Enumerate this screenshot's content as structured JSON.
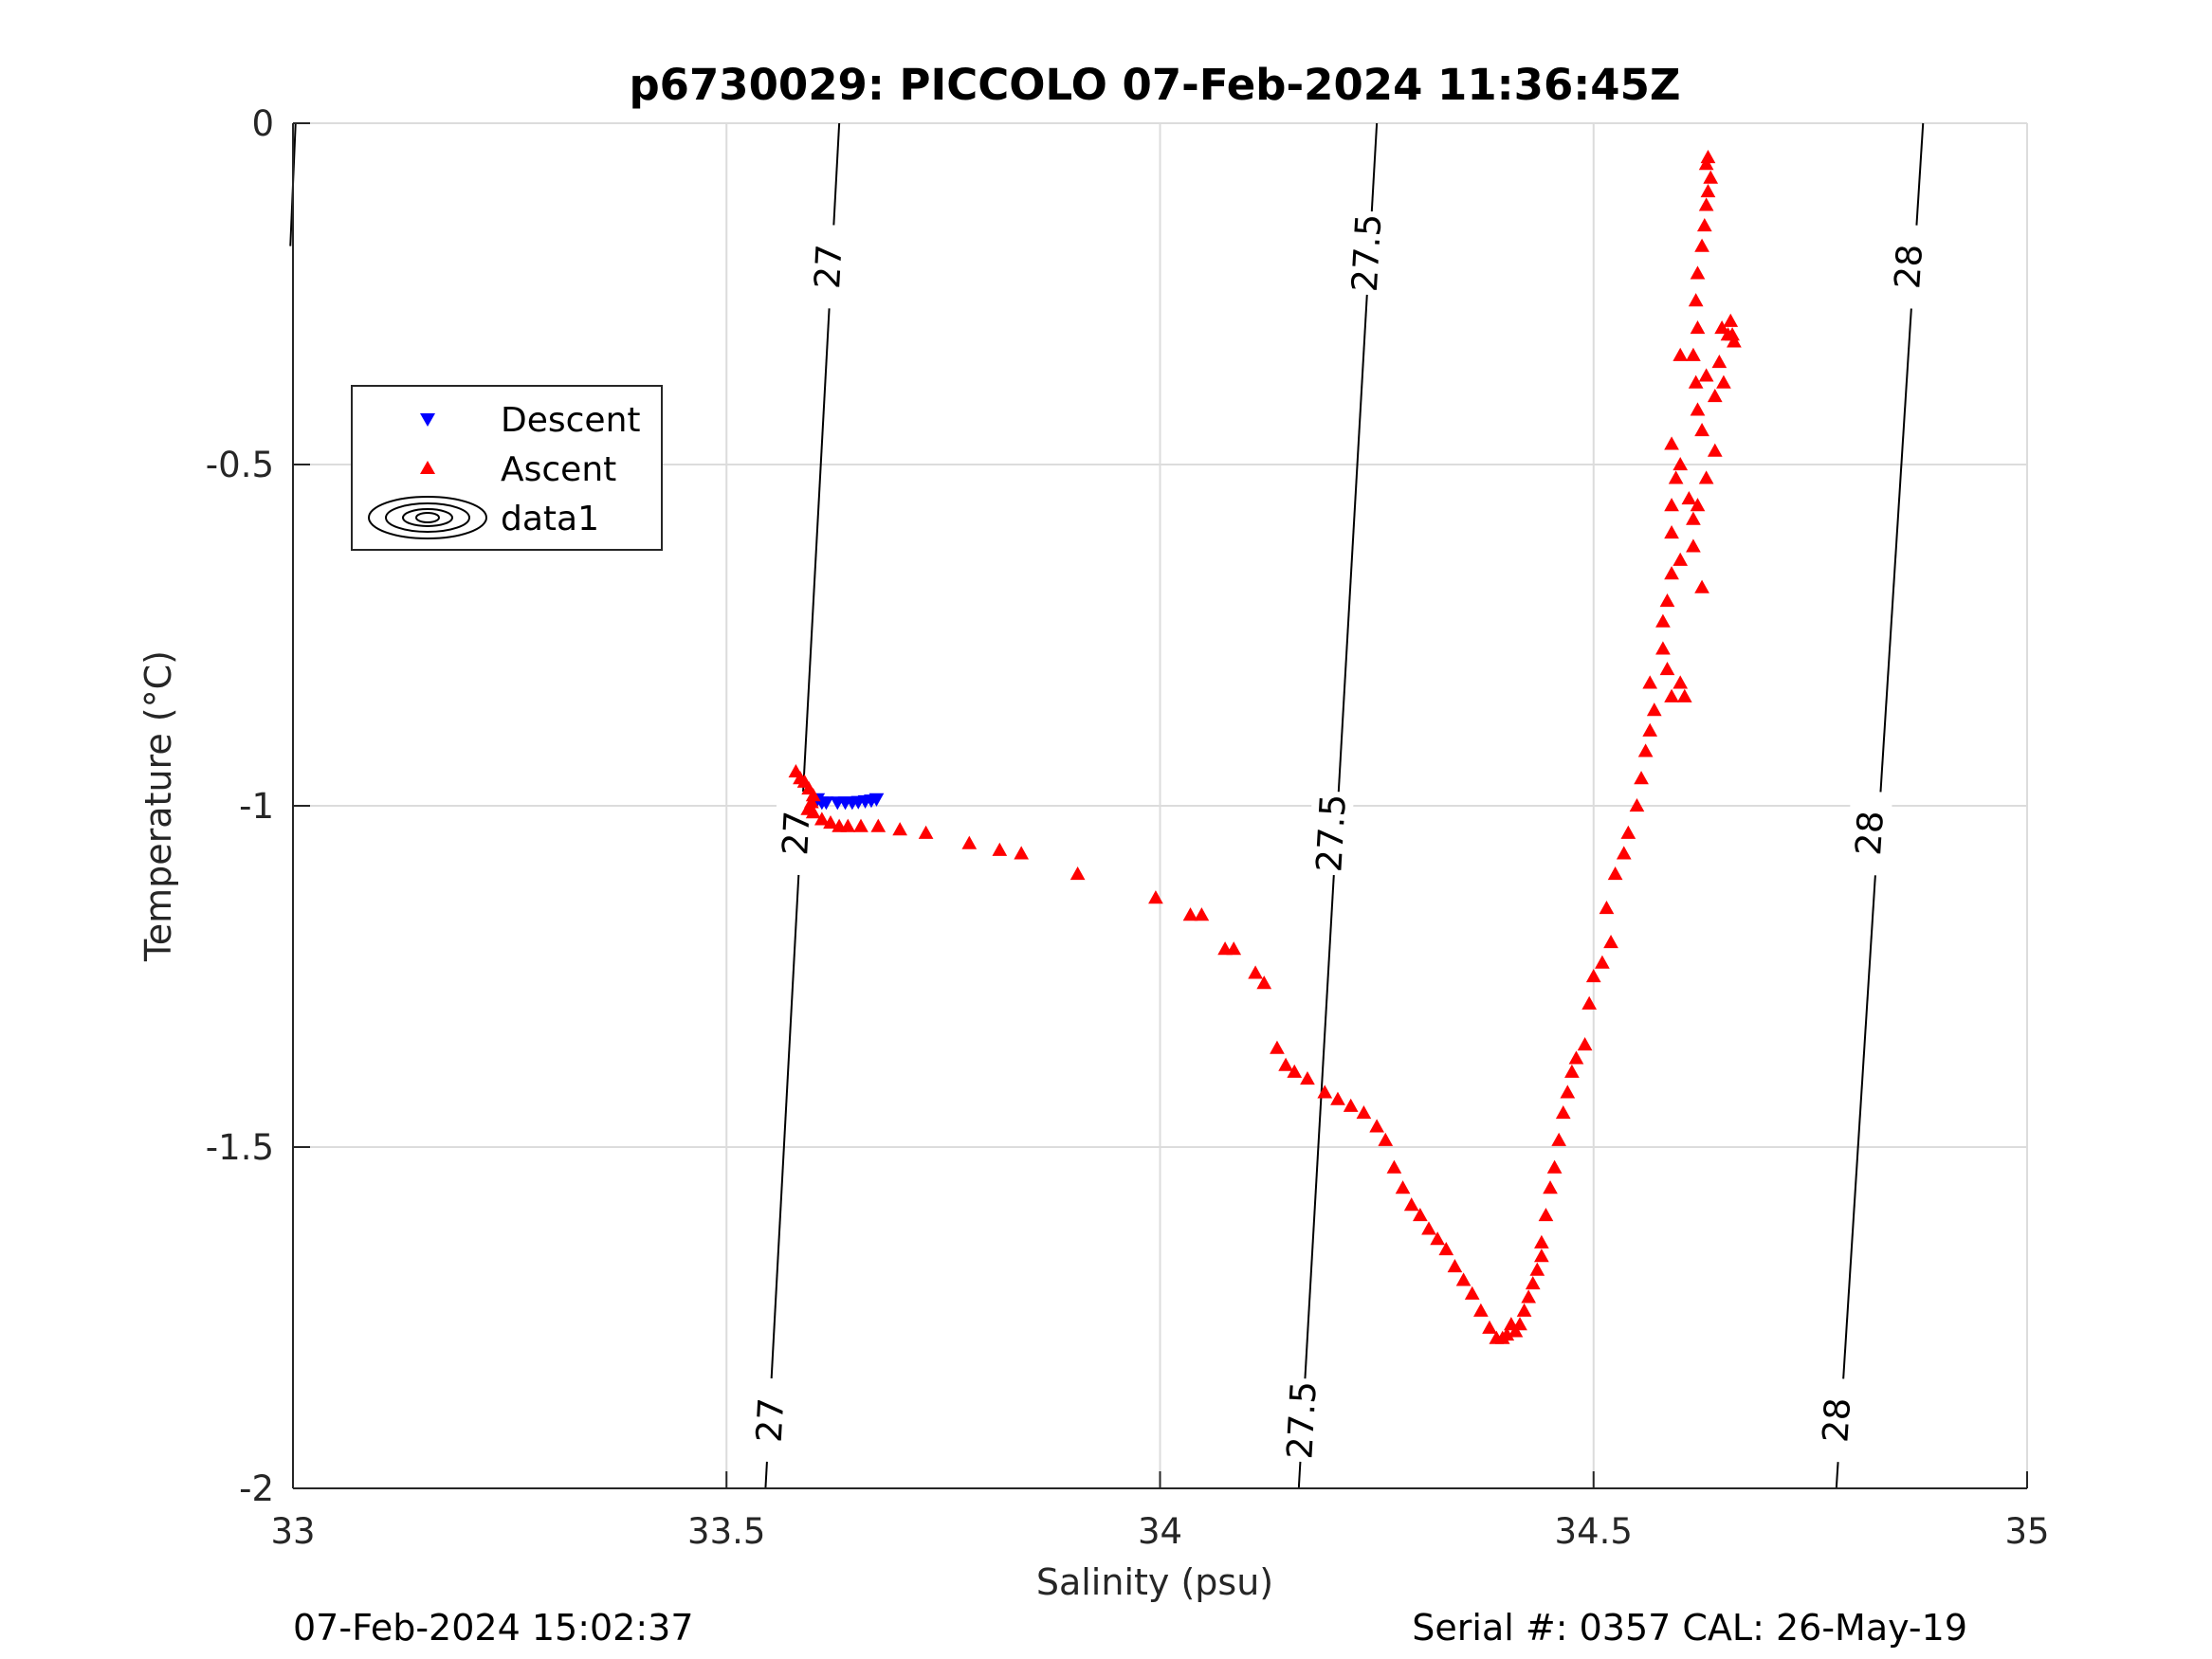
{
  "chart_data": {
    "type": "scatter",
    "title": "p6730029: PICCOLO 07-Feb-2024 11:36:45Z",
    "xlabel": "Salinity (psu)",
    "ylabel": "Temperature (°C)",
    "xlim": [
      33,
      35
    ],
    "ylim": [
      -2,
      0
    ],
    "xticks": [
      "33",
      "33.5",
      "34",
      "34.5",
      "35"
    ],
    "yticks": [
      "0",
      "-0.5",
      "-1",
      "-1.5",
      "-2"
    ],
    "grid": true,
    "legend_position": "upper-left",
    "footer_left": "07-Feb-2024 15:02:37",
    "footer_right": "Serial #: 0357  CAL: 26-May-19",
    "series": [
      {
        "name": "Descent",
        "marker": "triangle-down",
        "color": "#0000ff",
        "points": [
          [
            33.605,
            -0.99
          ],
          [
            33.61,
            -0.995
          ],
          [
            33.615,
            -0.995
          ],
          [
            33.628,
            -0.995
          ],
          [
            33.637,
            -0.995
          ],
          [
            33.645,
            -0.995
          ],
          [
            33.652,
            -0.994
          ],
          [
            33.66,
            -0.993
          ],
          [
            33.667,
            -0.992
          ],
          [
            33.673,
            -0.99
          ]
        ]
      },
      {
        "name": "Ascent",
        "marker": "triangle-up",
        "color": "#ff0000",
        "points": [
          [
            33.58,
            -0.95
          ],
          [
            33.585,
            -0.96
          ],
          [
            33.59,
            -0.965
          ],
          [
            33.595,
            -0.975
          ],
          [
            33.6,
            -0.985
          ],
          [
            33.598,
            -0.995
          ],
          [
            33.594,
            -1.005
          ],
          [
            33.6,
            -1.01
          ],
          [
            33.61,
            -1.02
          ],
          [
            33.62,
            -1.025
          ],
          [
            33.63,
            -1.03
          ],
          [
            33.64,
            -1.03
          ],
          [
            33.655,
            -1.03
          ],
          [
            33.675,
            -1.03
          ],
          [
            33.7,
            -1.035
          ],
          [
            33.73,
            -1.04
          ],
          [
            33.78,
            -1.055
          ],
          [
            33.815,
            -1.065
          ],
          [
            33.84,
            -1.07
          ],
          [
            33.905,
            -1.1
          ],
          [
            33.995,
            -1.135
          ],
          [
            34.035,
            -1.16
          ],
          [
            34.048,
            -1.16
          ],
          [
            34.075,
            -1.21
          ],
          [
            34.085,
            -1.21
          ],
          [
            34.11,
            -1.245
          ],
          [
            34.12,
            -1.26
          ],
          [
            34.135,
            -1.355
          ],
          [
            34.145,
            -1.38
          ],
          [
            34.155,
            -1.39
          ],
          [
            34.17,
            -1.4
          ],
          [
            34.19,
            -1.42
          ],
          [
            34.205,
            -1.43
          ],
          [
            34.22,
            -1.44
          ],
          [
            34.235,
            -1.45
          ],
          [
            34.25,
            -1.47
          ],
          [
            34.26,
            -1.49
          ],
          [
            34.27,
            -1.53
          ],
          [
            34.28,
            -1.56
          ],
          [
            34.29,
            -1.585
          ],
          [
            34.3,
            -1.6
          ],
          [
            34.31,
            -1.62
          ],
          [
            34.32,
            -1.635
          ],
          [
            34.33,
            -1.65
          ],
          [
            34.34,
            -1.675
          ],
          [
            34.35,
            -1.695
          ],
          [
            34.36,
            -1.715
          ],
          [
            34.37,
            -1.74
          ],
          [
            34.38,
            -1.765
          ],
          [
            34.388,
            -1.78
          ],
          [
            34.395,
            -1.78
          ],
          [
            34.4,
            -1.775
          ],
          [
            34.405,
            -1.76
          ],
          [
            34.41,
            -1.77
          ],
          [
            34.415,
            -1.76
          ],
          [
            34.42,
            -1.74
          ],
          [
            34.425,
            -1.72
          ],
          [
            34.43,
            -1.7
          ],
          [
            34.435,
            -1.68
          ],
          [
            34.44,
            -1.66
          ],
          [
            34.44,
            -1.64
          ],
          [
            34.445,
            -1.6
          ],
          [
            34.45,
            -1.56
          ],
          [
            34.455,
            -1.53
          ],
          [
            34.46,
            -1.49
          ],
          [
            34.465,
            -1.45
          ],
          [
            34.47,
            -1.42
          ],
          [
            34.475,
            -1.39
          ],
          [
            34.48,
            -1.37
          ],
          [
            34.49,
            -1.35
          ],
          [
            34.495,
            -1.29
          ],
          [
            34.5,
            -1.25
          ],
          [
            34.51,
            -1.23
          ],
          [
            34.52,
            -1.2
          ],
          [
            34.515,
            -1.15
          ],
          [
            34.525,
            -1.1
          ],
          [
            34.535,
            -1.07
          ],
          [
            34.54,
            -1.04
          ],
          [
            34.55,
            -1.0
          ],
          [
            34.555,
            -0.96
          ],
          [
            34.56,
            -0.92
          ],
          [
            34.565,
            -0.89
          ],
          [
            34.57,
            -0.86
          ],
          [
            34.565,
            -0.82
          ],
          [
            34.59,
            -0.84
          ],
          [
            34.6,
            -0.82
          ],
          [
            34.605,
            -0.84
          ],
          [
            34.585,
            -0.8
          ],
          [
            34.58,
            -0.77
          ],
          [
            34.58,
            -0.73
          ],
          [
            34.585,
            -0.7
          ],
          [
            34.59,
            -0.66
          ],
          [
            34.6,
            -0.64
          ],
          [
            34.615,
            -0.62
          ],
          [
            34.625,
            -0.68
          ],
          [
            34.59,
            -0.6
          ],
          [
            34.59,
            -0.56
          ],
          [
            34.595,
            -0.52
          ],
          [
            34.59,
            -0.47
          ],
          [
            34.6,
            -0.5
          ],
          [
            34.61,
            -0.55
          ],
          [
            34.615,
            -0.58
          ],
          [
            34.62,
            -0.56
          ],
          [
            34.63,
            -0.52
          ],
          [
            34.64,
            -0.48
          ],
          [
            34.625,
            -0.45
          ],
          [
            34.62,
            -0.42
          ],
          [
            34.618,
            -0.38
          ],
          [
            34.615,
            -0.34
          ],
          [
            34.63,
            -0.37
          ],
          [
            34.64,
            -0.4
          ],
          [
            34.65,
            -0.38
          ],
          [
            34.645,
            -0.35
          ],
          [
            34.648,
            -0.3
          ],
          [
            34.655,
            -0.31
          ],
          [
            34.662,
            -0.32
          ],
          [
            34.66,
            -0.31
          ],
          [
            34.658,
            -0.29
          ],
          [
            34.6,
            -0.34
          ],
          [
            34.62,
            -0.3
          ],
          [
            34.618,
            -0.26
          ],
          [
            34.62,
            -0.22
          ],
          [
            34.625,
            -0.18
          ],
          [
            34.628,
            -0.15
          ],
          [
            34.63,
            -0.12
          ],
          [
            34.632,
            -0.1
          ],
          [
            34.635,
            -0.08
          ],
          [
            34.63,
            -0.06
          ],
          [
            34.632,
            -0.05
          ]
        ]
      }
    ],
    "contours": [
      {
        "label": "27",
        "points": [
          [
            33.003,
            0
          ],
          [
            32.997,
            -0.18
          ]
        ],
        "label_positions": []
      },
      {
        "label": "27",
        "points": [
          [
            33.63,
            0
          ],
          [
            33.545,
            -2
          ]
        ],
        "label_positions": [
          [
            33.617,
            -0.21
          ],
          [
            33.58,
            -1.04
          ],
          [
            33.55,
            -1.9
          ]
        ]
      },
      {
        "label": "27.5",
        "points": [
          [
            34.25,
            0
          ],
          [
            34.16,
            -2
          ]
        ],
        "label_positions": [
          [
            34.238,
            -0.19
          ],
          [
            34.197,
            -1.04
          ],
          [
            34.163,
            -1.9
          ]
        ]
      },
      {
        "label": "28",
        "points": [
          [
            34.88,
            0
          ],
          [
            34.78,
            -2
          ]
        ],
        "label_positions": [
          [
            34.863,
            -0.21
          ],
          [
            34.818,
            -1.04
          ],
          [
            34.78,
            -1.9
          ]
        ]
      }
    ],
    "legend": [
      {
        "label": "Descent",
        "marker": "triangle-down",
        "color": "#0000ff"
      },
      {
        "label": "Ascent",
        "marker": "triangle-up",
        "color": "#ff0000"
      },
      {
        "label": "data1",
        "marker": "contour",
        "color": "#000000"
      }
    ]
  }
}
